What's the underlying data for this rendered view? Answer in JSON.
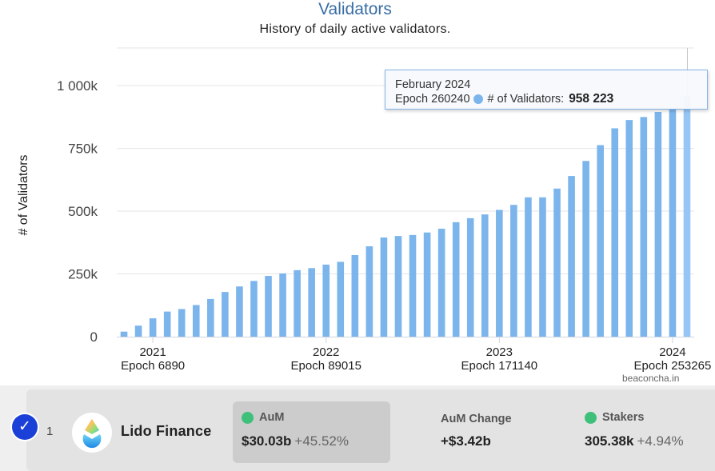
{
  "chart_data": {
    "type": "bar",
    "title": "Validators",
    "subtitle": "History of daily active validators.",
    "ylabel": "# of Validators",
    "ylim": [
      0,
      1150000
    ],
    "y_ticks": [
      "0",
      "250k",
      "500k",
      "750k",
      "1 000k"
    ],
    "y_tick_values": [
      0,
      250000,
      500000,
      750000,
      1000000
    ],
    "x_ticks": [
      {
        "year": "2021",
        "epoch": "Epoch 6890"
      },
      {
        "year": "2022",
        "epoch": "Epoch 89015"
      },
      {
        "year": "2023",
        "epoch": "Epoch 171140"
      },
      {
        "year": "2024",
        "epoch": "Epoch 253265"
      }
    ],
    "x_tick_bar_index": [
      2,
      14,
      26,
      38
    ],
    "grid": true,
    "bar_color": "#7cb5ec",
    "highlight_color": "#95c6f5",
    "values": [
      20000,
      44000,
      73000,
      100000,
      110000,
      126000,
      150000,
      178000,
      200000,
      222000,
      242000,
      252000,
      265000,
      273000,
      287000,
      298000,
      325000,
      360000,
      395000,
      401000,
      405000,
      415000,
      430000,
      456000,
      472000,
      487000,
      505000,
      525000,
      555000,
      555000,
      590000,
      640000,
      700000,
      763000,
      830000,
      863000,
      875000,
      895000,
      905000,
      958223
    ],
    "highlight_index": 39,
    "tooltip": {
      "month": "February 2024",
      "epoch": "Epoch 260240",
      "series": "# of Validators:",
      "value": "958 223"
    },
    "credit": "beaconcha.in"
  },
  "row": {
    "rank": "1",
    "name": "Lido Finance",
    "aum_label": "AuM",
    "aum_value": "$30.03b",
    "aum_change": "+45.52%",
    "aum_change_label": "AuM Change",
    "aum_change_value": "+$3.42b",
    "stakers_label": "Stakers",
    "stakers_value": "305.38k",
    "stakers_change": "+4.94%",
    "check_symbol": "✓",
    "selected_color": "#1a40d8",
    "status_color": "#3ec07a"
  }
}
